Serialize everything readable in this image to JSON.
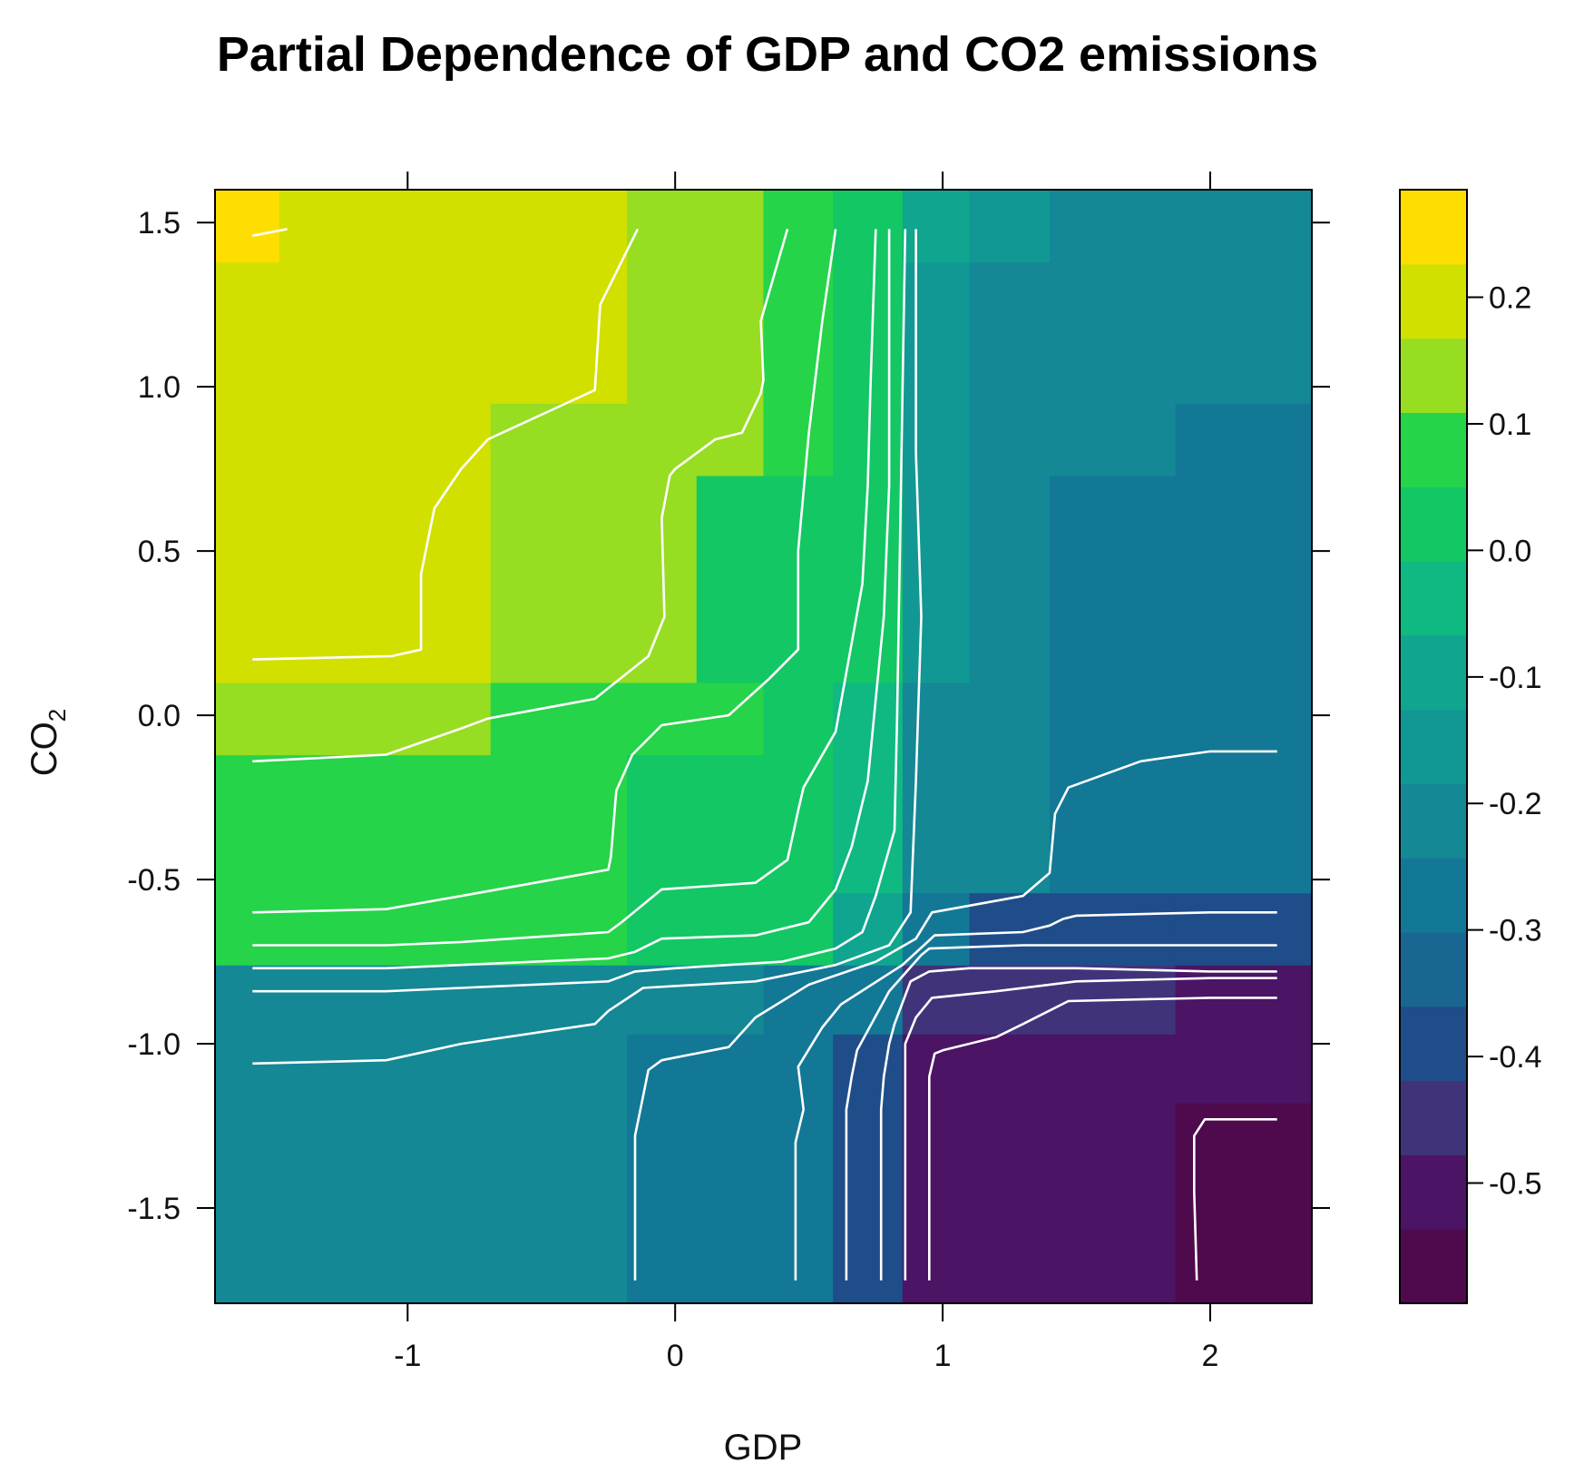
{
  "chart_data": {
    "type": "heatmap",
    "title": "Partial Dependence of GDP and CO2 emissions",
    "xlabel": "GDP",
    "ylabel_main": "CO",
    "ylabel_sub": "2",
    "xlim": [
      -1.72,
      2.38
    ],
    "ylim": [
      -1.79,
      1.6
    ],
    "x_ticks": [
      {
        "value": -1,
        "label": "-1"
      },
      {
        "value": 0,
        "label": "0"
      },
      {
        "value": 1,
        "label": "1"
      },
      {
        "value": 2,
        "label": "2"
      }
    ],
    "y_ticks": [
      {
        "value": 1.5,
        "label": "1.5"
      },
      {
        "value": 1.0,
        "label": "1.0"
      },
      {
        "value": 0.5,
        "label": "0.5"
      },
      {
        "value": 0.0,
        "label": "0.0"
      },
      {
        "value": -0.5,
        "label": "-0.5"
      },
      {
        "value": -1.0,
        "label": "-1.0"
      },
      {
        "value": -1.5,
        "label": "-1.5"
      }
    ],
    "x_edges": [
      -1.72,
      -1.48,
      -0.69,
      -0.18,
      0.08,
      0.33,
      0.59,
      0.85,
      1.1,
      1.4,
      1.87,
      2.38
    ],
    "y_edges": [
      -1.79,
      -1.18,
      -0.97,
      -0.76,
      -0.54,
      -0.12,
      0.1,
      0.73,
      0.95,
      1.38,
      1.6
    ],
    "z": [
      [
        -0.2,
        -0.2,
        -0.2,
        -0.25,
        -0.25,
        -0.3,
        -0.37,
        -0.52,
        -0.52,
        -0.52,
        -0.57
      ],
      [
        -0.2,
        -0.2,
        -0.2,
        -0.25,
        -0.25,
        -0.25,
        -0.37,
        -0.52,
        -0.52,
        -0.52,
        -0.52
      ],
      [
        -0.2,
        -0.2,
        -0.2,
        -0.2,
        -0.2,
        -0.25,
        -0.3,
        -0.47,
        -0.47,
        -0.47,
        -0.52
      ],
      [
        0.07,
        0.07,
        0.07,
        0.03,
        0.03,
        0.03,
        -0.1,
        -0.3,
        -0.37,
        -0.4,
        -0.37
      ],
      [
        0.07,
        0.07,
        0.07,
        0.03,
        0.03,
        0.03,
        -0.05,
        -0.2,
        -0.2,
        -0.3,
        -0.3
      ],
      [
        0.13,
        0.13,
        0.07,
        0.07,
        0.07,
        0.03,
        -0.05,
        -0.2,
        -0.2,
        -0.25,
        -0.25
      ],
      [
        0.18,
        0.18,
        0.13,
        0.13,
        0.03,
        0.03,
        0.0,
        -0.15,
        -0.2,
        -0.25,
        -0.25
      ],
      [
        0.18,
        0.18,
        0.13,
        0.13,
        0.13,
        0.07,
        0.0,
        -0.15,
        -0.2,
        -0.2,
        -0.25
      ],
      [
        0.18,
        0.18,
        0.18,
        0.13,
        0.13,
        0.07,
        0.0,
        -0.15,
        -0.2,
        -0.2,
        -0.2
      ],
      [
        0.25,
        0.18,
        0.18,
        0.13,
        0.13,
        0.07,
        0.03,
        -0.1,
        -0.15,
        -0.2,
        -0.2
      ]
    ],
    "colorbar": {
      "zmin": -0.595,
      "zmax": 0.285,
      "ticks": [
        {
          "value": 0.2,
          "label": "0.2"
        },
        {
          "value": 0.1,
          "label": "0.1"
        },
        {
          "value": 0.0,
          "label": "0.0"
        },
        {
          "value": -0.1,
          "label": "-0.1"
        },
        {
          "value": -0.2,
          "label": "-0.2"
        },
        {
          "value": -0.3,
          "label": "-0.3"
        },
        {
          "value": -0.4,
          "label": "-0.4"
        },
        {
          "value": -0.5,
          "label": "-0.5"
        }
      ],
      "colors": [
        "#4e0a4d",
        "#4b1464",
        "#413379",
        "#1f4d89",
        "#1a6692",
        "#137896",
        "#148895",
        "#129894",
        "#10a58f",
        "#0fb981",
        "#13c764",
        "#25d449",
        "#97dd21",
        "#d2e000",
        "#fede00"
      ]
    },
    "contours": [
      [
        [
          -1.58,
          1.46
        ],
        [
          -1.45,
          1.48
        ]
      ],
      [
        [
          -1.58,
          0.17
        ],
        [
          -1.06,
          0.18
        ],
        [
          -0.95,
          0.2
        ],
        [
          -0.95,
          0.43
        ],
        [
          -0.9,
          0.63
        ],
        [
          -0.8,
          0.75
        ],
        [
          -0.7,
          0.84
        ],
        [
          -0.3,
          0.99
        ],
        [
          -0.28,
          1.25
        ],
        [
          -0.14,
          1.48
        ]
      ],
      [
        [
          -1.58,
          -0.14
        ],
        [
          -1.08,
          -0.12
        ],
        [
          -0.8,
          -0.04
        ],
        [
          -0.7,
          -0.01
        ],
        [
          -0.3,
          0.05
        ],
        [
          -0.1,
          0.18
        ],
        [
          -0.04,
          0.3
        ],
        [
          -0.05,
          0.6
        ],
        [
          -0.02,
          0.73
        ],
        [
          0.0,
          0.75
        ],
        [
          0.15,
          0.84
        ],
        [
          0.25,
          0.86
        ],
        [
          0.32,
          0.98
        ],
        [
          0.33,
          1.02
        ],
        [
          0.32,
          1.2
        ],
        [
          0.42,
          1.48
        ]
      ],
      [
        [
          -1.58,
          -0.6
        ],
        [
          -1.08,
          -0.59
        ],
        [
          -0.8,
          -0.55
        ],
        [
          -0.25,
          -0.47
        ],
        [
          -0.24,
          -0.43
        ],
        [
          -0.22,
          -0.23
        ],
        [
          -0.16,
          -0.12
        ],
        [
          -0.05,
          -0.03
        ],
        [
          0.2,
          0.0
        ],
        [
          0.35,
          0.11
        ],
        [
          0.46,
          0.2
        ],
        [
          0.46,
          0.5
        ],
        [
          0.5,
          0.86
        ],
        [
          0.55,
          1.2
        ],
        [
          0.6,
          1.48
        ]
      ],
      [
        [
          -1.58,
          -0.7
        ],
        [
          -1.08,
          -0.7
        ],
        [
          -0.8,
          -0.69
        ],
        [
          -0.25,
          -0.66
        ],
        [
          -0.2,
          -0.63
        ],
        [
          -0.05,
          -0.53
        ],
        [
          0.3,
          -0.51
        ],
        [
          0.42,
          -0.44
        ],
        [
          0.46,
          -0.29
        ],
        [
          0.48,
          -0.22
        ],
        [
          0.6,
          -0.05
        ],
        [
          0.7,
          0.4
        ],
        [
          0.72,
          0.7
        ],
        [
          0.73,
          1.0
        ],
        [
          0.75,
          1.48
        ]
      ],
      [
        [
          -1.58,
          -0.77
        ],
        [
          -1.08,
          -0.77
        ],
        [
          -0.8,
          -0.76
        ],
        [
          -0.25,
          -0.74
        ],
        [
          -0.15,
          -0.72
        ],
        [
          -0.05,
          -0.68
        ],
        [
          0.3,
          -0.67
        ],
        [
          0.5,
          -0.63
        ],
        [
          0.6,
          -0.53
        ],
        [
          0.66,
          -0.4
        ],
        [
          0.72,
          -0.2
        ],
        [
          0.78,
          0.3
        ],
        [
          0.8,
          0.7
        ],
        [
          0.8,
          1.48
        ]
      ],
      [
        [
          -1.58,
          -0.84
        ],
        [
          -1.08,
          -0.84
        ],
        [
          -0.8,
          -0.83
        ],
        [
          -0.25,
          -0.81
        ],
        [
          -0.15,
          -0.78
        ],
        [
          0.0,
          -0.77
        ],
        [
          0.4,
          -0.75
        ],
        [
          0.6,
          -0.71
        ],
        [
          0.7,
          -0.66
        ],
        [
          0.75,
          -0.55
        ],
        [
          0.82,
          -0.35
        ],
        [
          0.83,
          0.0
        ],
        [
          0.84,
          0.5
        ],
        [
          0.86,
          1.48
        ]
      ],
      [
        [
          -1.58,
          -1.06
        ],
        [
          -1.08,
          -1.05
        ],
        [
          -0.8,
          -1.0
        ],
        [
          -0.3,
          -0.94
        ],
        [
          -0.25,
          -0.9
        ],
        [
          -0.12,
          -0.83
        ],
        [
          0.3,
          -0.81
        ],
        [
          0.6,
          -0.76
        ],
        [
          0.8,
          -0.7
        ],
        [
          0.88,
          -0.6
        ],
        [
          0.9,
          -0.2
        ],
        [
          0.92,
          0.3
        ],
        [
          0.9,
          0.8
        ],
        [
          0.9,
          1.48
        ]
      ],
      [
        [
          -0.15,
          -1.72
        ],
        [
          -0.15,
          -1.28
        ],
        [
          -0.13,
          -1.2
        ],
        [
          -0.1,
          -1.08
        ],
        [
          -0.05,
          -1.05
        ],
        [
          0.2,
          -1.01
        ],
        [
          0.3,
          -0.92
        ],
        [
          0.5,
          -0.82
        ],
        [
          0.75,
          -0.75
        ],
        [
          0.9,
          -0.68
        ],
        [
          0.96,
          -0.6
        ],
        [
          1.3,
          -0.55
        ],
        [
          1.4,
          -0.48
        ],
        [
          1.42,
          -0.3
        ],
        [
          1.47,
          -0.22
        ],
        [
          1.74,
          -0.14
        ],
        [
          2.0,
          -0.11
        ],
        [
          2.25,
          -0.11
        ]
      ],
      [
        [
          0.45,
          -1.72
        ],
        [
          0.45,
          -1.3
        ],
        [
          0.48,
          -1.2
        ],
        [
          0.46,
          -1.07
        ],
        [
          0.55,
          -0.95
        ],
        [
          0.62,
          -0.88
        ],
        [
          0.85,
          -0.76
        ],
        [
          0.93,
          -0.7
        ],
        [
          0.97,
          -0.67
        ],
        [
          1.3,
          -0.66
        ],
        [
          1.4,
          -0.64
        ],
        [
          1.45,
          -0.62
        ],
        [
          1.5,
          -0.61
        ],
        [
          2.0,
          -0.6
        ],
        [
          2.25,
          -0.6
        ]
      ],
      [
        [
          0.64,
          -1.72
        ],
        [
          0.64,
          -1.2
        ],
        [
          0.66,
          -1.1
        ],
        [
          0.68,
          -1.02
        ],
        [
          0.72,
          -0.96
        ],
        [
          0.8,
          -0.84
        ],
        [
          0.92,
          -0.73
        ],
        [
          0.95,
          -0.71
        ],
        [
          1.3,
          -0.7
        ],
        [
          2.0,
          -0.7
        ],
        [
          2.25,
          -0.7
        ]
      ],
      [
        [
          0.77,
          -1.72
        ],
        [
          0.77,
          -1.2
        ],
        [
          0.78,
          -1.1
        ],
        [
          0.8,
          -1.0
        ],
        [
          0.82,
          -0.94
        ],
        [
          0.88,
          -0.81
        ],
        [
          0.95,
          -0.78
        ],
        [
          1.1,
          -0.77
        ],
        [
          1.5,
          -0.77
        ],
        [
          2.0,
          -0.78
        ],
        [
          2.25,
          -0.78
        ]
      ],
      [
        [
          0.86,
          -1.72
        ],
        [
          0.86,
          -1.2
        ],
        [
          0.86,
          -1.0
        ],
        [
          0.9,
          -0.92
        ],
        [
          0.96,
          -0.86
        ],
        [
          1.2,
          -0.84
        ],
        [
          1.4,
          -0.82
        ],
        [
          1.5,
          -0.81
        ],
        [
          2.0,
          -0.8
        ],
        [
          2.25,
          -0.8
        ]
      ],
      [
        [
          0.95,
          -1.72
        ],
        [
          0.95,
          -1.1
        ],
        [
          0.97,
          -1.03
        ],
        [
          1.0,
          -1.02
        ],
        [
          1.2,
          -0.98
        ],
        [
          1.3,
          -0.94
        ],
        [
          1.47,
          -0.87
        ],
        [
          2.0,
          -0.86
        ],
        [
          2.25,
          -0.86
        ]
      ],
      [
        [
          1.95,
          -1.72
        ],
        [
          1.94,
          -1.45
        ],
        [
          1.94,
          -1.28
        ],
        [
          1.98,
          -1.23
        ],
        [
          2.25,
          -1.23
        ]
      ]
    ]
  }
}
